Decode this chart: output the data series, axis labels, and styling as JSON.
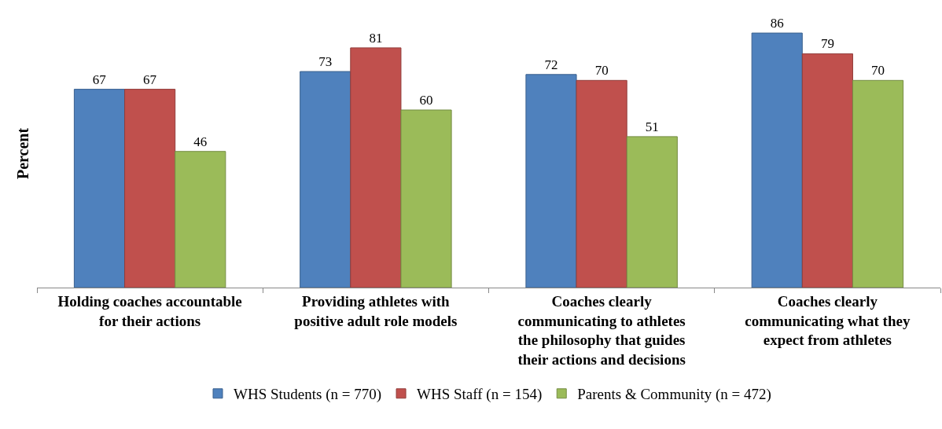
{
  "chart_data": {
    "type": "bar",
    "ylabel": "Percent",
    "categories": [
      "Holding coaches accountable for their actions",
      "Providing athletes with positive adult role models",
      "Coaches clearly communicating to athletes the philosophy that guides their actions and decisions",
      "Coaches clearly communicating what they expect from athletes"
    ],
    "series": [
      {
        "name": "WHS Students (n = 770)",
        "color": "#4f81bd",
        "values": [
          67,
          73,
          72,
          86
        ]
      },
      {
        "name": "WHS Staff (n = 154)",
        "color": "#c0504d",
        "values": [
          67,
          81,
          70,
          79
        ]
      },
      {
        "name": "Parents & Community (n = 472)",
        "color": "#9bbb59",
        "values": [
          46,
          60,
          51,
          70
        ]
      }
    ],
    "data_labels": true,
    "grid": false,
    "legend": "bottom",
    "tick_labels": "x"
  }
}
